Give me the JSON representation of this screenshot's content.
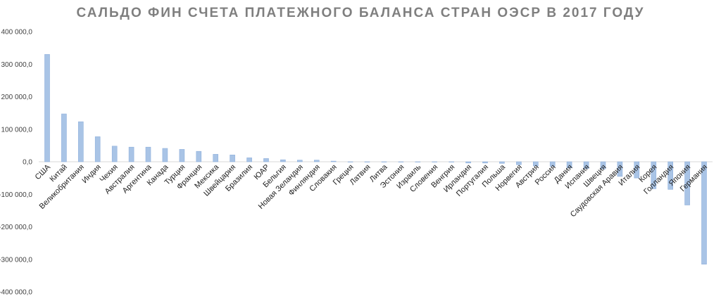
{
  "chart_data": {
    "type": "bar",
    "title": "САЛЬДО ФИН СЧЕТА ПЛАТЕЖНОГО БАЛАНСА СТРАН ОЭСР В 2017 ГОДУ",
    "xlabel": "",
    "ylabel": "",
    "ylim": [
      -400000,
      400000
    ],
    "yticks": [
      400000,
      300000,
      200000,
      100000,
      0,
      -100000,
      -200000,
      -300000,
      -400000
    ],
    "ytick_labels": [
      "400 000,0",
      "300 000,0",
      "200 000,0",
      "100 000,0",
      "0,0",
      "-100 000,0",
      "-200 000,0",
      "-300 000,0",
      "-400 000,0"
    ],
    "grid": false,
    "bar_color": "#a9c4e6",
    "bar_edge_color": "#8fb0dc",
    "categories": [
      "США",
      "Китай",
      "Великобритания",
      "Индия",
      "Чехия",
      "Австралия",
      "Аргентина",
      "Канада",
      "Турция",
      "Франция",
      "Мексика",
      "Швейцария",
      "Бразилия",
      "ЮАР",
      "Бельгия",
      "Новая Зеландия",
      "Финляндия",
      "Словакия",
      "Греция",
      "Латвия",
      "Литва",
      "Эстония",
      "Израиль",
      "Словения",
      "Венгрия",
      "Ирландия",
      "Португалия",
      "Польша",
      "Норвегия",
      "Австрия",
      "Россия",
      "Дания",
      "Испания",
      "Швеция",
      "Саудовская Аравия",
      "Италия",
      "Корея",
      "Голландия",
      "Япония",
      "Германия"
    ],
    "values": [
      330000,
      147000,
      123000,
      77000,
      48000,
      45000,
      45000,
      41000,
      38000,
      32000,
      23000,
      21000,
      12000,
      10000,
      6000,
      5000,
      5000,
      2000,
      0,
      0,
      0,
      0,
      0,
      0,
      0,
      -4000,
      -4000,
      -5000,
      -9000,
      -13000,
      -14000,
      -19000,
      -21000,
      -22000,
      -45000,
      -50000,
      -83000,
      -85000,
      -133000,
      -315000
    ]
  }
}
